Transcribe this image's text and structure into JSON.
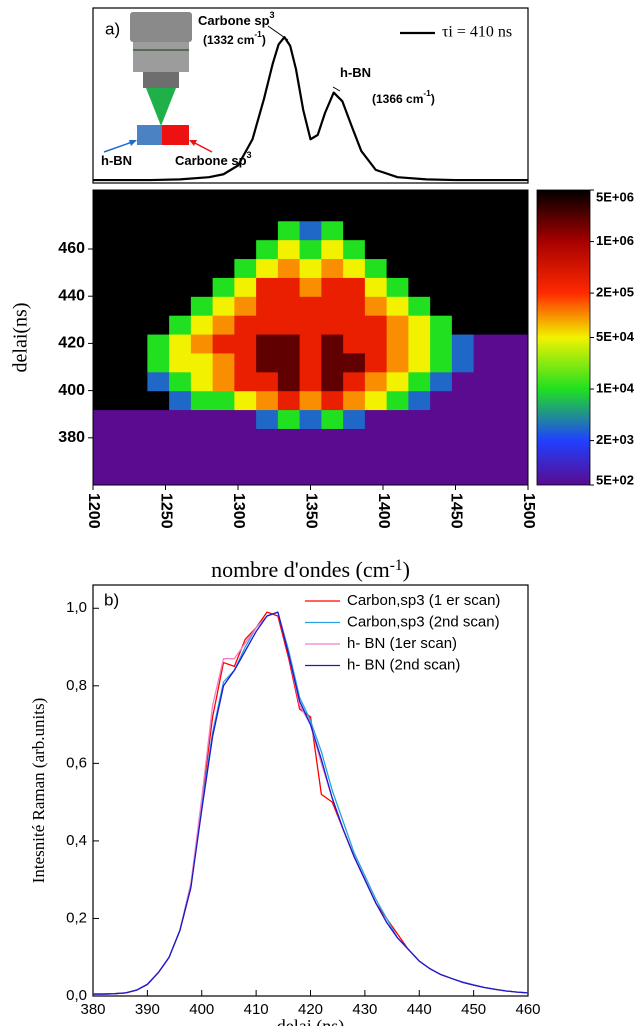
{
  "chart_data": [
    {
      "type": "line",
      "label": "a)",
      "x": [
        1200,
        1220,
        1240,
        1260,
        1280,
        1290,
        1300,
        1310,
        1318,
        1324,
        1328,
        1332,
        1336,
        1340,
        1345,
        1350,
        1355,
        1360,
        1366,
        1372,
        1378,
        1385,
        1395,
        1410,
        1430,
        1450,
        1475,
        1500
      ],
      "series": [
        {
          "name": "τi = 410 ns",
          "color": "#000000",
          "values": [
            0.02,
            0.02,
            0.02,
            0.025,
            0.04,
            0.06,
            0.12,
            0.3,
            0.58,
            0.82,
            0.95,
            1.0,
            0.94,
            0.78,
            0.5,
            0.3,
            0.33,
            0.48,
            0.62,
            0.56,
            0.4,
            0.22,
            0.09,
            0.04,
            0.025,
            0.02,
            0.02,
            0.02
          ]
        }
      ],
      "xlim": [
        1200,
        1500
      ],
      "ylim": [
        0,
        1.2
      ],
      "legend": "upper right",
      "annotations": [
        {
          "lines": [
            [
              "Carbone sp",
              "3"
            ],
            [
              "(1332 cm",
              "-1",
              ")"
            ]
          ],
          "color": "#e00000"
        },
        {
          "lines": [
            [
              "h-BN"
            ],
            [
              "(1366 cm",
              "-1",
              ")"
            ]
          ],
          "color": "#1f5f9f"
        },
        {
          "lines": [
            [
              "h-BN"
            ]
          ],
          "color": "#1a6ccc"
        },
        {
          "lines": [
            [
              "Carbone sp",
              "3"
            ]
          ],
          "color": "#ee1111"
        }
      ]
    },
    {
      "type": "heatmap",
      "x": [
        1200,
        1215,
        1230,
        1245,
        1260,
        1275,
        1290,
        1305,
        1320,
        1335,
        1350,
        1365,
        1380,
        1395,
        1410,
        1425,
        1440,
        1455,
        1470,
        1485,
        1500
      ],
      "y": [
        364,
        372,
        380,
        388,
        396,
        404,
        412,
        420,
        428,
        436,
        444,
        452,
        460,
        468,
        476,
        484
      ],
      "z": [
        [
          500,
          500,
          500,
          500,
          500,
          500,
          500,
          500,
          500,
          500,
          500,
          500,
          500,
          500,
          500,
          500,
          500,
          500,
          500,
          500,
          500
        ],
        [
          500,
          500,
          500,
          500,
          500,
          500,
          500,
          500,
          500,
          500,
          500,
          500,
          500,
          500,
          500,
          500,
          500,
          500,
          500,
          500,
          500
        ],
        [
          500,
          500,
          500,
          500,
          500,
          500,
          500,
          500,
          500,
          500,
          500,
          500,
          500,
          500,
          500,
          500,
          500,
          500,
          500,
          500,
          500
        ],
        [
          500,
          500,
          500,
          500,
          500,
          500,
          500,
          500,
          3000,
          10000,
          3000,
          10000,
          3000,
          500,
          500,
          500,
          500,
          500,
          500,
          500,
          500
        ],
        [
          5000000,
          5000000,
          5000000,
          5000000,
          3000,
          10000,
          10000,
          50000,
          100000,
          300000,
          100000,
          300000,
          100000,
          50000,
          10000,
          3000,
          500,
          500,
          500,
          500,
          500
        ],
        [
          5000000,
          5000000,
          5000000,
          3000,
          10000,
          50000,
          100000,
          300000,
          300000,
          2000000,
          300000,
          2000000,
          300000,
          100000,
          50000,
          10000,
          3000,
          500,
          500,
          500,
          500
        ],
        [
          5000000,
          5000000,
          5000000,
          10000,
          50000,
          50000,
          100000,
          300000,
          2000000,
          2000000,
          300000,
          2000000,
          2000000,
          300000,
          100000,
          50000,
          10000,
          3000,
          500,
          500,
          500
        ],
        [
          5000000,
          5000000,
          5000000,
          10000,
          50000,
          100000,
          300000,
          300000,
          2000000,
          2000000,
          300000,
          2000000,
          300000,
          300000,
          100000,
          50000,
          10000,
          3000,
          500,
          500,
          500
        ],
        [
          5000000,
          5000000,
          5000000,
          5000000,
          10000,
          50000,
          100000,
          300000,
          300000,
          300000,
          300000,
          300000,
          300000,
          300000,
          100000,
          50000,
          10000,
          5000000,
          5000000,
          5000000,
          5000000
        ],
        [
          5000000,
          5000000,
          5000000,
          5000000,
          5000000,
          10000,
          50000,
          100000,
          300000,
          300000,
          300000,
          300000,
          300000,
          100000,
          50000,
          10000,
          5000000,
          5000000,
          5000000,
          5000000,
          5000000
        ],
        [
          5000000,
          5000000,
          5000000,
          5000000,
          5000000,
          5000000,
          10000,
          50000,
          300000,
          300000,
          100000,
          300000,
          300000,
          50000,
          10000,
          5000000,
          5000000,
          5000000,
          5000000,
          5000000,
          5000000
        ],
        [
          5000000,
          5000000,
          5000000,
          5000000,
          5000000,
          5000000,
          5000000,
          10000,
          50000,
          100000,
          50000,
          100000,
          50000,
          10000,
          5000000,
          5000000,
          5000000,
          5000000,
          5000000,
          5000000,
          5000000
        ],
        [
          5000000,
          5000000,
          5000000,
          5000000,
          5000000,
          5000000,
          5000000,
          5000000,
          10000,
          50000,
          10000,
          50000,
          10000,
          5000000,
          5000000,
          5000000,
          5000000,
          5000000,
          5000000,
          5000000,
          5000000
        ],
        [
          5000000,
          5000000,
          5000000,
          5000000,
          5000000,
          5000000,
          5000000,
          5000000,
          5000000,
          10000,
          3000,
          10000,
          5000000,
          5000000,
          5000000,
          5000000,
          5000000,
          5000000,
          5000000,
          5000000,
          5000000
        ],
        [
          5000000,
          5000000,
          5000000,
          5000000,
          5000000,
          5000000,
          5000000,
          5000000,
          5000000,
          5000000,
          5000000,
          5000000,
          5000000,
          5000000,
          5000000,
          5000000,
          5000000,
          5000000,
          5000000,
          5000000,
          5000000
        ],
        [
          5000000,
          5000000,
          5000000,
          5000000,
          5000000,
          5000000,
          5000000,
          5000000,
          5000000,
          5000000,
          5000000,
          5000000,
          5000000,
          5000000,
          5000000,
          5000000,
          5000000,
          5000000,
          5000000,
          5000000,
          5000000
        ]
      ],
      "xlim": [
        1200,
        1500
      ],
      "ylim": [
        360,
        485
      ],
      "xticks": [
        1200,
        1250,
        1300,
        1350,
        1400,
        1450,
        1500
      ],
      "yticks": [
        380,
        400,
        420,
        440,
        460
      ],
      "xlabel": [
        "nombre d'ondes (cm",
        "-1",
        ")"
      ],
      "ylabel": "delai(ns)",
      "colorbar": {
        "log": true,
        "zlim": [
          500,
          5000000
        ],
        "ticks": [
          {
            "value": 500,
            "label": "5E+02"
          },
          {
            "value": 2000,
            "label": "2E+03"
          },
          {
            "value": 10000,
            "label": "1E+04"
          },
          {
            "value": 50000,
            "label": "5E+04"
          },
          {
            "value": 200000,
            "label": "2E+05"
          },
          {
            "value": 1000000,
            "label": "1E+06"
          },
          {
            "value": 5000000,
            "label": "5E+06"
          }
        ],
        "colors": [
          "#5a0b8f",
          "#2040ff",
          "#20e020",
          "#f2f200",
          "#ff2a00",
          "#a80000",
          "#000000"
        ]
      }
    },
    {
      "type": "line",
      "label": "b)",
      "x": [
        380,
        382,
        384,
        386,
        388,
        390,
        392,
        394,
        396,
        398,
        400,
        402,
        404,
        406,
        408,
        410,
        412,
        414,
        416,
        418,
        420,
        422,
        424,
        426,
        428,
        430,
        432,
        434,
        436,
        438,
        440,
        442,
        444,
        446,
        448,
        450,
        452,
        454,
        456,
        458,
        460
      ],
      "series": [
        {
          "name": "Carbon,sp3 (1 er scan)",
          "color": "#ff0000",
          "values": [
            0.005,
            0.005,
            0.006,
            0.008,
            0.015,
            0.03,
            0.06,
            0.1,
            0.17,
            0.28,
            0.5,
            0.72,
            0.86,
            0.85,
            0.92,
            0.95,
            0.99,
            0.98,
            0.87,
            0.74,
            0.72,
            0.52,
            0.5,
            0.43,
            0.36,
            0.3,
            0.24,
            0.2,
            0.16,
            0.12,
            0.09,
            0.07,
            0.055,
            0.045,
            0.035,
            0.028,
            0.022,
            0.017,
            0.013,
            0.01,
            0.008
          ]
        },
        {
          "name": "Carbon,sp3 (2nd scan)",
          "color": "#29a3e0",
          "values": [
            0.005,
            0.005,
            0.006,
            0.008,
            0.015,
            0.03,
            0.06,
            0.1,
            0.17,
            0.29,
            0.49,
            0.68,
            0.81,
            0.84,
            0.9,
            0.95,
            0.98,
            0.99,
            0.89,
            0.77,
            0.71,
            0.63,
            0.53,
            0.45,
            0.37,
            0.31,
            0.25,
            0.2,
            0.15,
            0.12,
            0.09,
            0.07,
            0.055,
            0.045,
            0.036,
            0.029,
            0.022,
            0.017,
            0.013,
            0.01,
            0.008
          ]
        },
        {
          "name": "h- BN (1er scan)",
          "color": "#f080c8",
          "values": [
            0.005,
            0.005,
            0.006,
            0.008,
            0.015,
            0.03,
            0.06,
            0.1,
            0.17,
            0.29,
            0.51,
            0.75,
            0.87,
            0.87,
            0.91,
            0.95,
            0.98,
            0.99,
            0.88,
            0.75,
            0.7,
            0.6,
            0.51,
            0.43,
            0.36,
            0.3,
            0.24,
            0.19,
            0.15,
            0.12,
            0.09,
            0.07,
            0.055,
            0.045,
            0.035,
            0.028,
            0.022,
            0.017,
            0.013,
            0.01,
            0.008
          ]
        },
        {
          "name": "h- BN (2nd scan)",
          "color": "#1a1acc",
          "values": [
            0.005,
            0.005,
            0.006,
            0.008,
            0.015,
            0.03,
            0.06,
            0.1,
            0.17,
            0.28,
            0.48,
            0.67,
            0.8,
            0.84,
            0.89,
            0.94,
            0.98,
            0.99,
            0.88,
            0.76,
            0.7,
            0.61,
            0.51,
            0.43,
            0.36,
            0.3,
            0.24,
            0.19,
            0.15,
            0.12,
            0.09,
            0.07,
            0.055,
            0.045,
            0.035,
            0.028,
            0.022,
            0.017,
            0.013,
            0.01,
            0.008
          ]
        }
      ],
      "xlim": [
        380,
        460
      ],
      "ylim": [
        0,
        1.06
      ],
      "xticks": [
        380,
        390,
        400,
        410,
        420,
        430,
        440,
        450,
        460
      ],
      "yticks": [
        {
          "value": 0,
          "label": "0,0"
        },
        {
          "value": 0.2,
          "label": "0,2"
        },
        {
          "value": 0.4,
          "label": "0,4"
        },
        {
          "value": 0.6,
          "label": "0,6"
        },
        {
          "value": 0.8,
          "label": "0,8"
        },
        {
          "value": 1.0,
          "label": "1,0"
        }
      ],
      "xlabel": "delai (ns)",
      "ylabel": "Intesnité Raman (arb.units)",
      "legend": "upper right"
    }
  ]
}
